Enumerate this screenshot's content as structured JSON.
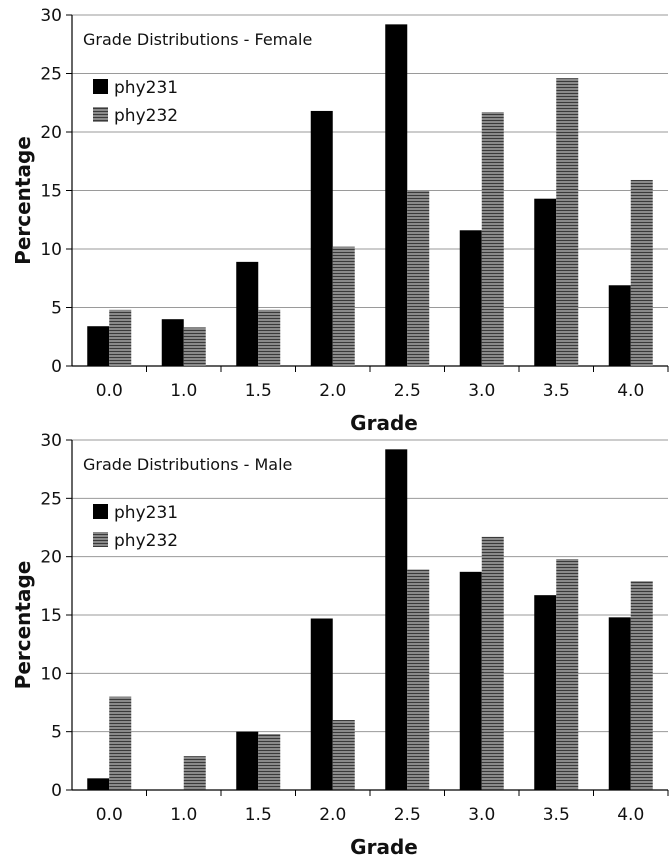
{
  "chart_data": [
    {
      "type": "bar",
      "title": "Grade Distributions - Female",
      "xlabel": "Grade",
      "ylabel": "Percentage",
      "ylim": [
        0,
        30
      ],
      "yticks": [
        "0",
        "5",
        "10",
        "15",
        "20",
        "25",
        "30"
      ],
      "categories": [
        "0.0",
        "1.0",
        "1.5",
        "2.0",
        "2.5",
        "3.0",
        "3.5",
        "4.0"
      ],
      "grid": "horizontal",
      "legend": "top-left",
      "series": [
        {
          "name": "phy231",
          "color": "#000000",
          "values": [
            3.4,
            4.0,
            8.9,
            21.8,
            29.2,
            11.6,
            14.3,
            6.9
          ]
        },
        {
          "name": "phy232",
          "color": "#707070",
          "pattern": "hatched",
          "values": [
            4.8,
            3.3,
            4.8,
            10.2,
            15.0,
            21.7,
            24.6,
            15.9
          ]
        }
      ]
    },
    {
      "type": "bar",
      "title": "Grade Distributions - Male",
      "xlabel": "Grade",
      "ylabel": "Percentage",
      "ylim": [
        0,
        30
      ],
      "yticks": [
        "0",
        "5",
        "10",
        "15",
        "20",
        "25",
        "30"
      ],
      "categories": [
        "0.0",
        "1.0",
        "1.5",
        "2.0",
        "2.5",
        "3.0",
        "3.5",
        "4.0"
      ],
      "grid": "horizontal",
      "legend": "top-left",
      "series": [
        {
          "name": "phy231",
          "color": "#000000",
          "values": [
            1.0,
            0.0,
            5.0,
            14.7,
            29.2,
            18.7,
            16.7,
            14.8
          ]
        },
        {
          "name": "phy232",
          "color": "#707070",
          "pattern": "hatched",
          "values": [
            8.0,
            2.9,
            4.8,
            6.0,
            18.9,
            21.7,
            19.8,
            17.9
          ]
        }
      ]
    }
  ]
}
